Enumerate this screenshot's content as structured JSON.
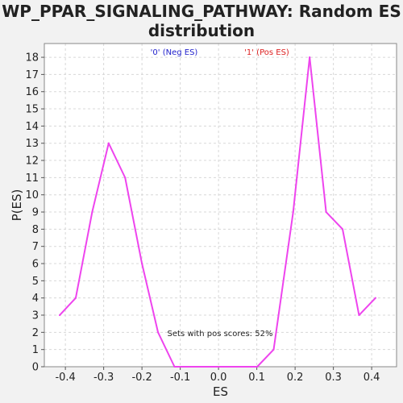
{
  "chart_data": {
    "type": "line",
    "title": "WP_PPAR_SIGNALING_PATHWAY: Random ES distribution",
    "xlabel": "ES",
    "ylabel": "P(ES)",
    "xlim": [
      -0.455,
      0.465
    ],
    "ylim": [
      0,
      18.8
    ],
    "x_ticks": [
      -0.4,
      -0.3,
      -0.2,
      -0.1,
      0.0,
      0.1,
      0.2,
      0.3,
      0.4
    ],
    "x_tick_labels": [
      "-0.4",
      "-0.3",
      "-0.2",
      "-0.1",
      "0.0",
      "0.1",
      "0.2",
      "0.3",
      "0.4"
    ],
    "y_ticks": [
      0,
      1,
      2,
      3,
      4,
      5,
      6,
      7,
      8,
      9,
      10,
      11,
      12,
      13,
      14,
      15,
      16,
      17,
      18
    ],
    "grid": true,
    "legend": [
      {
        "label": "'0' (Neg ES)",
        "color": "#2222cc"
      },
      {
        "label": "'1' (Pos ES)",
        "color": "#dd2222"
      }
    ],
    "legend_position": "top",
    "annotation": "Sets with pos scores: 52%",
    "series": [
      {
        "color": "#ee44ee",
        "x": [
          -0.415,
          -0.373,
          -0.33,
          -0.287,
          -0.244,
          -0.2,
          -0.158,
          -0.115,
          -0.072,
          -0.028,
          0.015,
          0.058,
          0.101,
          0.144,
          0.195,
          0.238,
          0.281,
          0.324,
          0.367,
          0.41
        ],
        "y": [
          3,
          4,
          9,
          13,
          11,
          6,
          2,
          0,
          0,
          0,
          0,
          0,
          0,
          1,
          9,
          18,
          9,
          8,
          3,
          4
        ]
      }
    ]
  }
}
